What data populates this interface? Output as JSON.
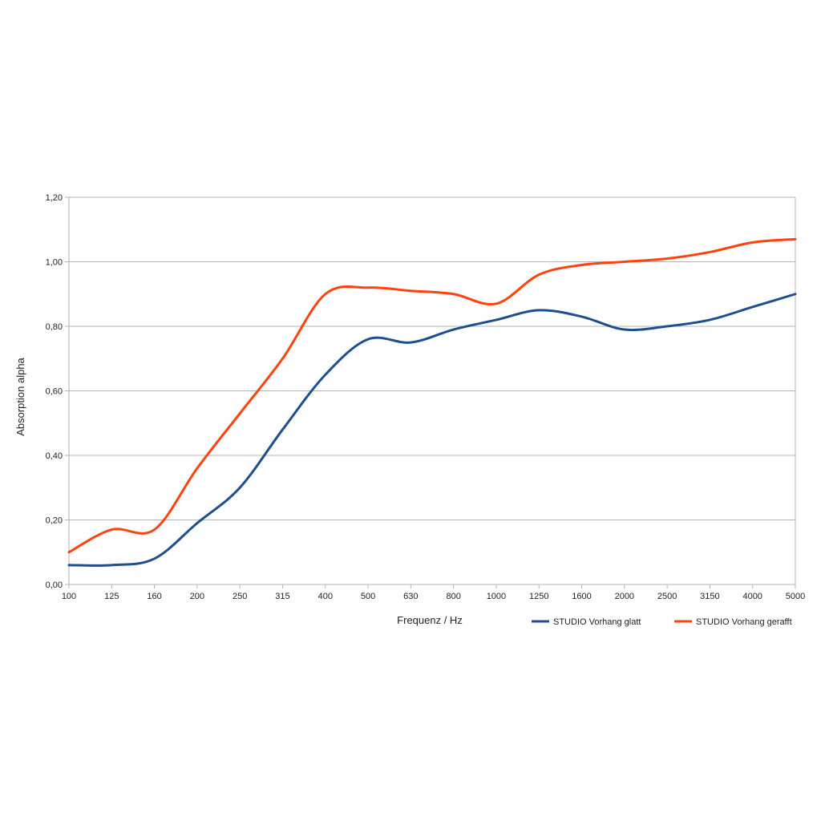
{
  "chart_data": {
    "type": "line",
    "title": "",
    "xlabel": "Frequenz / Hz",
    "ylabel": "Absorption alpha",
    "categories": [
      "100",
      "125",
      "160",
      "200",
      "250",
      "315",
      "400",
      "500",
      "630",
      "800",
      "1000",
      "1250",
      "1600",
      "2000",
      "2500",
      "3150",
      "4000",
      "5000"
    ],
    "ylim": [
      0,
      1.2
    ],
    "yticks": [
      "0,00",
      "0,20",
      "0,40",
      "0,60",
      "0,80",
      "1,00",
      "1,20"
    ],
    "grid": true,
    "legend_position": "bottom-right",
    "series": [
      {
        "name": "STUDIO Vorhang glatt",
        "color": "#1f4e8c",
        "values": [
          0.06,
          0.06,
          0.08,
          0.19,
          0.3,
          0.48,
          0.65,
          0.76,
          0.75,
          0.79,
          0.82,
          0.85,
          0.83,
          0.79,
          0.8,
          0.82,
          0.86,
          0.9
        ]
      },
      {
        "name": "STUDIO Vorhang gerafft",
        "color": "#ff420e",
        "values": [
          0.1,
          0.17,
          0.17,
          0.36,
          0.53,
          0.7,
          0.9,
          0.92,
          0.91,
          0.9,
          0.87,
          0.96,
          0.99,
          1.0,
          1.01,
          1.03,
          1.06,
          1.07
        ]
      }
    ]
  }
}
